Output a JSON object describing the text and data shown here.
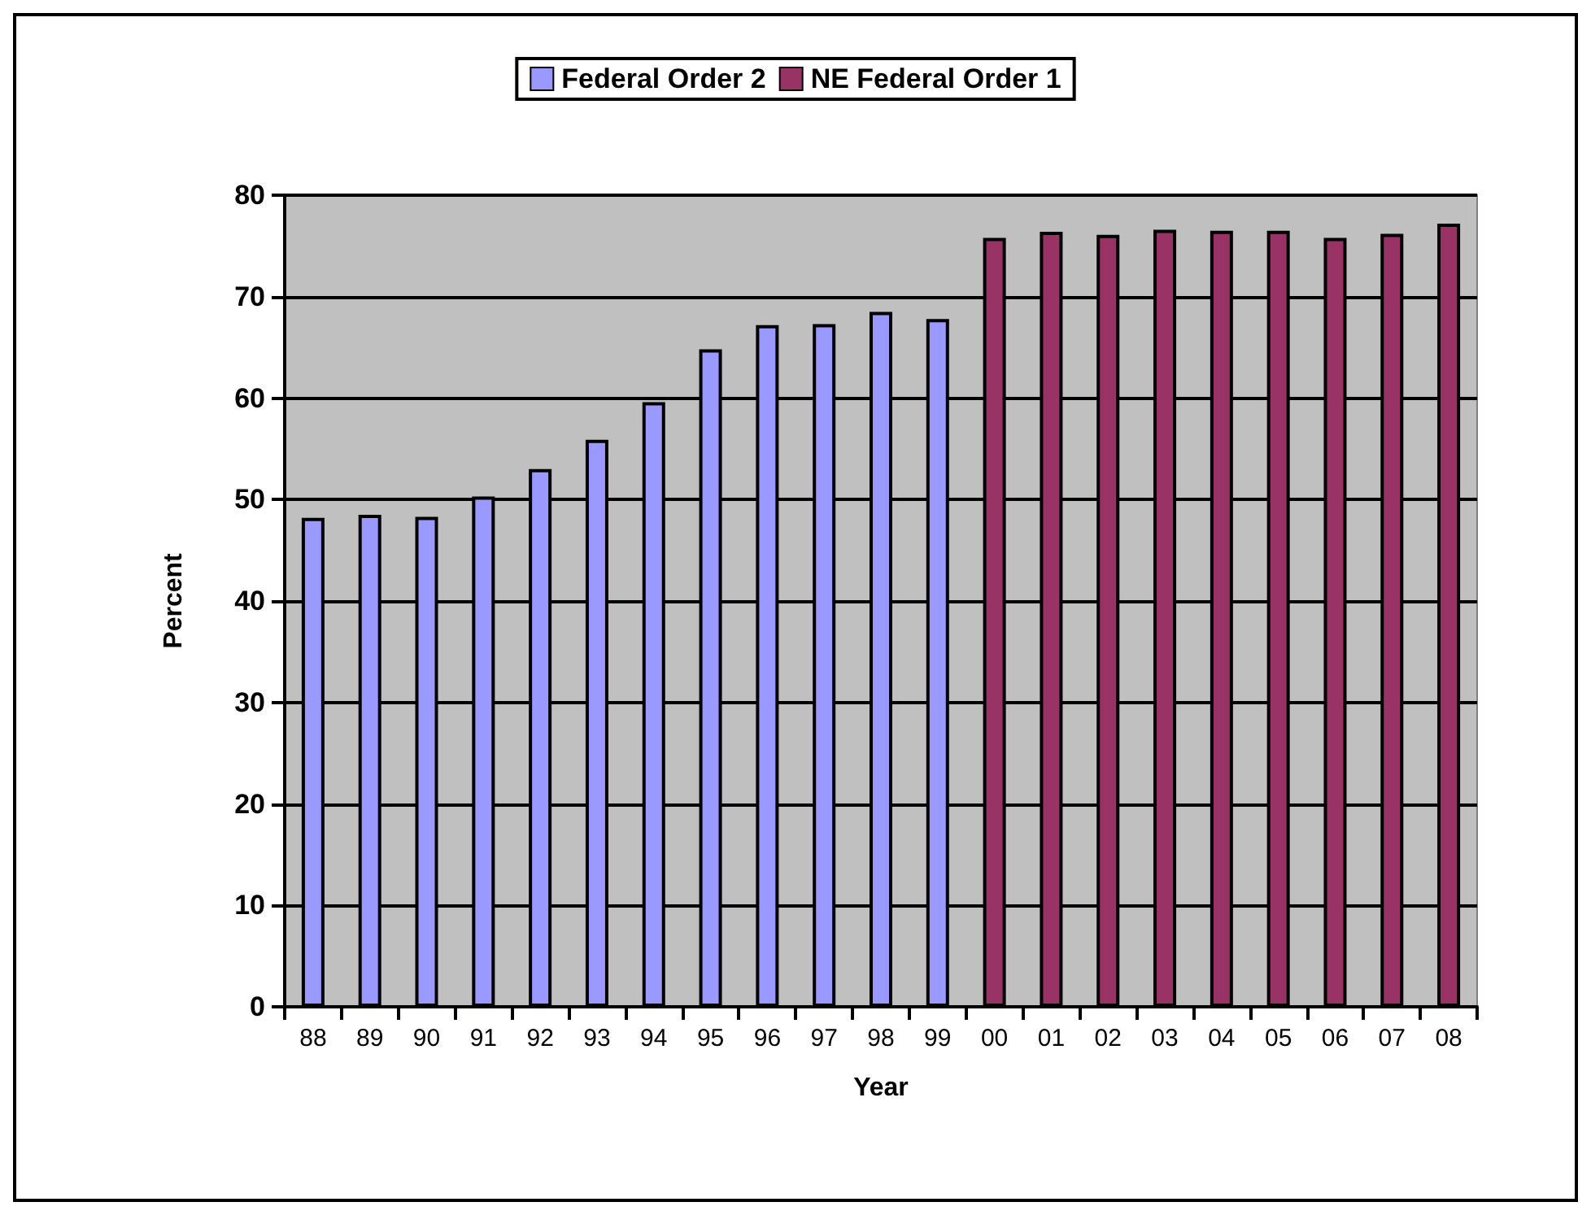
{
  "chart_data": {
    "type": "bar",
    "xlabel": "Year",
    "ylabel": "Percent",
    "categories": [
      "88",
      "89",
      "90",
      "91",
      "92",
      "93",
      "94",
      "95",
      "96",
      "97",
      "98",
      "99",
      "00",
      "01",
      "02",
      "03",
      "04",
      "05",
      "06",
      "07",
      "08"
    ],
    "series": [
      {
        "name": "Federal Order 2",
        "color": "#9999ff",
        "values": [
          48.2,
          48.5,
          48.3,
          50.3,
          53.0,
          55.9,
          59.6,
          64.8,
          67.2,
          67.3,
          68.5,
          67.8,
          null,
          null,
          null,
          null,
          null,
          null,
          null,
          null,
          null
        ]
      },
      {
        "name": "NE Federal Order 1",
        "color": "#993366",
        "values": [
          null,
          null,
          null,
          null,
          null,
          null,
          null,
          null,
          null,
          null,
          null,
          null,
          75.8,
          76.4,
          76.1,
          76.6,
          76.5,
          76.5,
          75.8,
          76.2,
          77.2
        ]
      }
    ],
    "ylim": [
      0,
      80
    ],
    "yticks": [
      0,
      10,
      20,
      30,
      40,
      50,
      60,
      70,
      80
    ],
    "grid": "y",
    "legend": "top"
  }
}
